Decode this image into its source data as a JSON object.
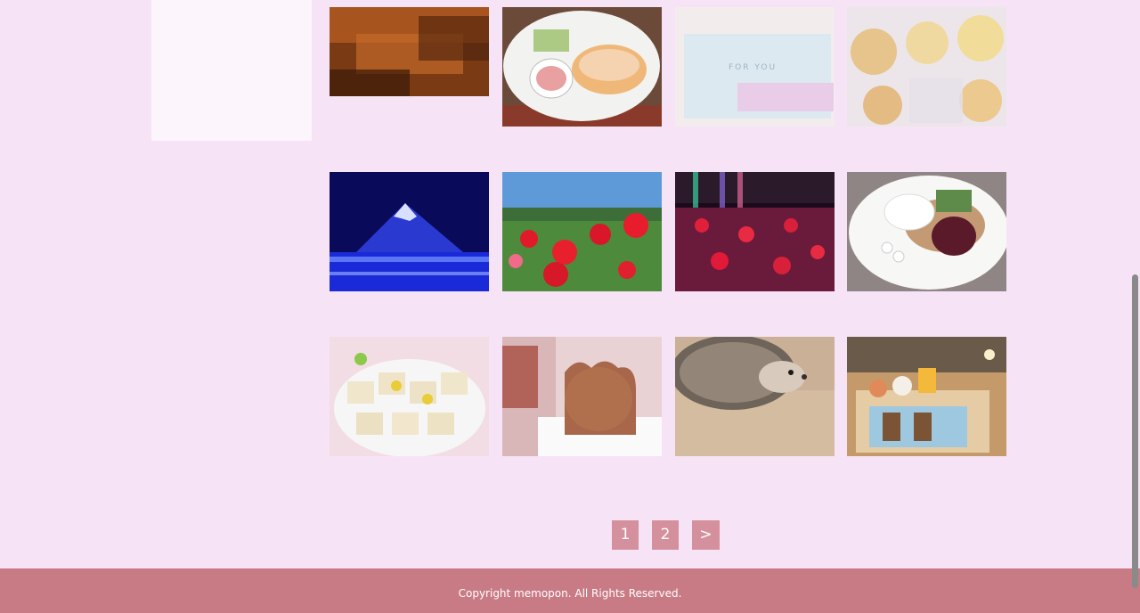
{
  "pagination": {
    "pages": [
      "1",
      "2"
    ],
    "next_label": ">"
  },
  "footer": {
    "copyright": "Copyright memopon. All Rights Reserved."
  },
  "colors": {
    "background": "#f7e3f6",
    "footer": "#c97b85",
    "pagination_button": "#d4909d"
  }
}
